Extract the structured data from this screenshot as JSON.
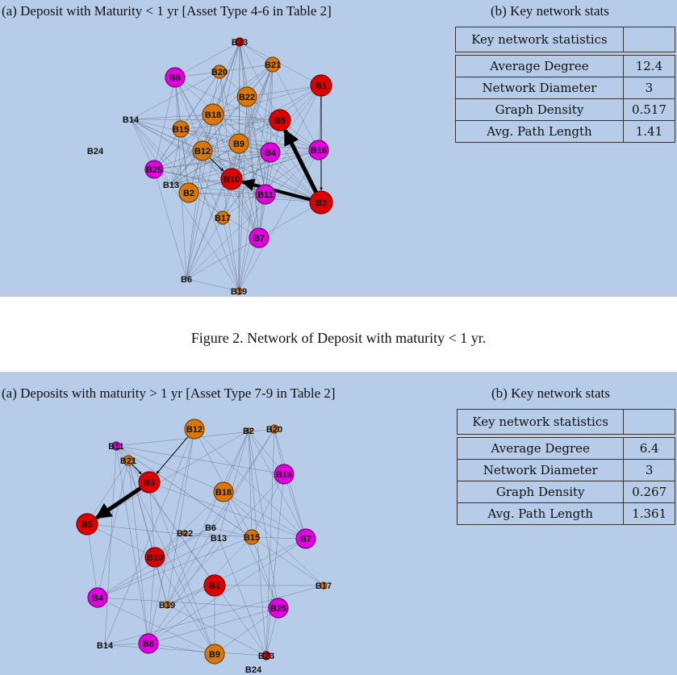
{
  "caption": "Figure 2.   Network of Deposit with maturity < 1 yr.",
  "colors": {
    "red": "#dd0000",
    "orange": "#d8780c",
    "magenta": "#e000e0",
    "background": "#b7cce8"
  },
  "figures": [
    {
      "title_a": "(a) Deposit with Maturity < 1 yr [Asset Type 4-6 in Table 2]",
      "title_b": "(b) Key network stats",
      "table": {
        "header": "Key network statistics",
        "rows": [
          {
            "label": "Average Degree",
            "value": "12.4"
          },
          {
            "label": "Network Diameter",
            "value": "3"
          },
          {
            "label": "Graph Density",
            "value": "0.517"
          },
          {
            "label": "Avg. Path Length",
            "value": "1.41"
          }
        ]
      },
      "nodes": [
        {
          "id": "B1",
          "color": "red",
          "r": 13
        },
        {
          "id": "B2",
          "color": "orange",
          "r": 12
        },
        {
          "id": "B3",
          "color": "red",
          "r": 14
        },
        {
          "id": "B4",
          "color": "magenta",
          "r": 12
        },
        {
          "id": "B5",
          "color": "red",
          "r": 13
        },
        {
          "id": "B6",
          "color": "none",
          "r": 0
        },
        {
          "id": "B7",
          "color": "magenta",
          "r": 12
        },
        {
          "id": "B8",
          "color": "magenta",
          "r": 12
        },
        {
          "id": "B9",
          "color": "orange",
          "r": 12
        },
        {
          "id": "B10",
          "color": "red",
          "r": 13
        },
        {
          "id": "B11",
          "color": "magenta",
          "r": 12
        },
        {
          "id": "B12",
          "color": "orange",
          "r": 12
        },
        {
          "id": "B13",
          "color": "none",
          "r": 0
        },
        {
          "id": "B14",
          "color": "none",
          "r": 0
        },
        {
          "id": "B15",
          "color": "orange",
          "r": 10
        },
        {
          "id": "B16",
          "color": "magenta",
          "r": 12
        },
        {
          "id": "B17",
          "color": "orange",
          "r": 8
        },
        {
          "id": "B18",
          "color": "orange",
          "r": 13
        },
        {
          "id": "B19",
          "color": "orange",
          "r": 4
        },
        {
          "id": "B20",
          "color": "orange",
          "r": 8
        },
        {
          "id": "B21",
          "color": "orange",
          "r": 9
        },
        {
          "id": "B22",
          "color": "orange",
          "r": 12
        },
        {
          "id": "B23",
          "color": "red",
          "r": 5
        },
        {
          "id": "B24",
          "color": "none",
          "r": 0
        },
        {
          "id": "B25",
          "color": "magenta",
          "r": 11
        }
      ],
      "arrows": [
        {
          "from": "B3",
          "to": "B5",
          "weight": 5
        },
        {
          "from": "B3",
          "to": "B10",
          "weight": 4
        },
        {
          "from": "B1",
          "to": "B3",
          "weight": 1
        },
        {
          "from": "B12",
          "to": "B10",
          "weight": 1
        }
      ]
    },
    {
      "title_a": "(a) Deposits with maturity > 1 yr [Asset Type 7-9 in Table 2]",
      "title_b": "(b) Key network stats",
      "table": {
        "header": "Key network statistics",
        "rows": [
          {
            "label": "Average Degree",
            "value": "6.4"
          },
          {
            "label": "Network Diameter",
            "value": "3"
          },
          {
            "label": "Graph Density",
            "value": "0.267"
          },
          {
            "label": "Avg. Path Length",
            "value": "1.361"
          }
        ]
      },
      "nodes": [
        {
          "id": "B1",
          "color": "red",
          "r": 13
        },
        {
          "id": "B2",
          "color": "orange",
          "r": 3
        },
        {
          "id": "B3",
          "color": "red",
          "r": 13
        },
        {
          "id": "B4",
          "color": "magenta",
          "r": 12
        },
        {
          "id": "B5",
          "color": "red",
          "r": 13
        },
        {
          "id": "B6",
          "color": "none",
          "r": 0
        },
        {
          "id": "B7",
          "color": "magenta",
          "r": 12
        },
        {
          "id": "B8",
          "color": "magenta",
          "r": 12
        },
        {
          "id": "B9",
          "color": "orange",
          "r": 12
        },
        {
          "id": "B10",
          "color": "red",
          "r": 12
        },
        {
          "id": "B11",
          "color": "magenta",
          "r": 5
        },
        {
          "id": "B12",
          "color": "orange",
          "r": 12
        },
        {
          "id": "B13",
          "color": "none",
          "r": 0
        },
        {
          "id": "B14",
          "color": "none",
          "r": 0
        },
        {
          "id": "B15",
          "color": "orange",
          "r": 9
        },
        {
          "id": "B16",
          "color": "magenta",
          "r": 12
        },
        {
          "id": "B17",
          "color": "orange",
          "r": 4
        },
        {
          "id": "B18",
          "color": "orange",
          "r": 12
        },
        {
          "id": "B19",
          "color": "orange",
          "r": 4
        },
        {
          "id": "B20",
          "color": "orange",
          "r": 5
        },
        {
          "id": "B21",
          "color": "orange",
          "r": 6
        },
        {
          "id": "B22",
          "color": "orange",
          "r": 3
        },
        {
          "id": "B23",
          "color": "red",
          "r": 5
        },
        {
          "id": "B24",
          "color": "none",
          "r": 0
        },
        {
          "id": "B25",
          "color": "magenta",
          "r": 12
        }
      ],
      "arrows": [
        {
          "from": "B3",
          "to": "B5",
          "weight": 5
        },
        {
          "from": "B12",
          "to": "B3",
          "weight": 1
        },
        {
          "from": "B21",
          "to": "B3",
          "weight": 1
        }
      ]
    }
  ]
}
